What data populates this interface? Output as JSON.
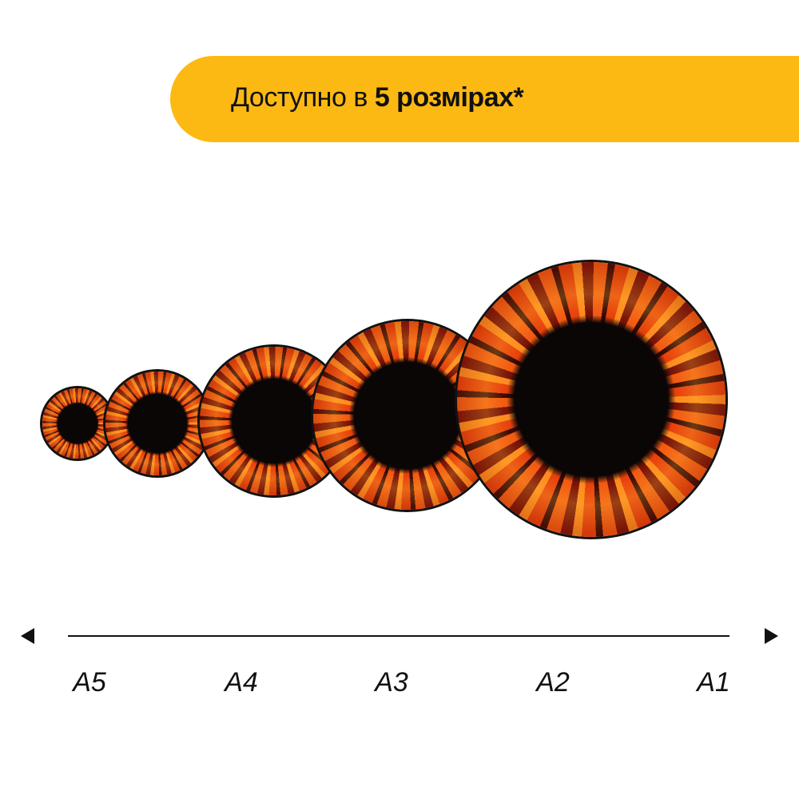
{
  "banner": {
    "text_prefix": "Доступно в ",
    "text_bold": "5 розмірах*",
    "color": "#fdb913"
  },
  "sizes": [
    {
      "label": "A5"
    },
    {
      "label": "A4"
    },
    {
      "label": "A3"
    },
    {
      "label": "A2"
    },
    {
      "label": "A1"
    }
  ],
  "plate_colors": {
    "ring": "#e8420c",
    "center": "#0a0606"
  }
}
